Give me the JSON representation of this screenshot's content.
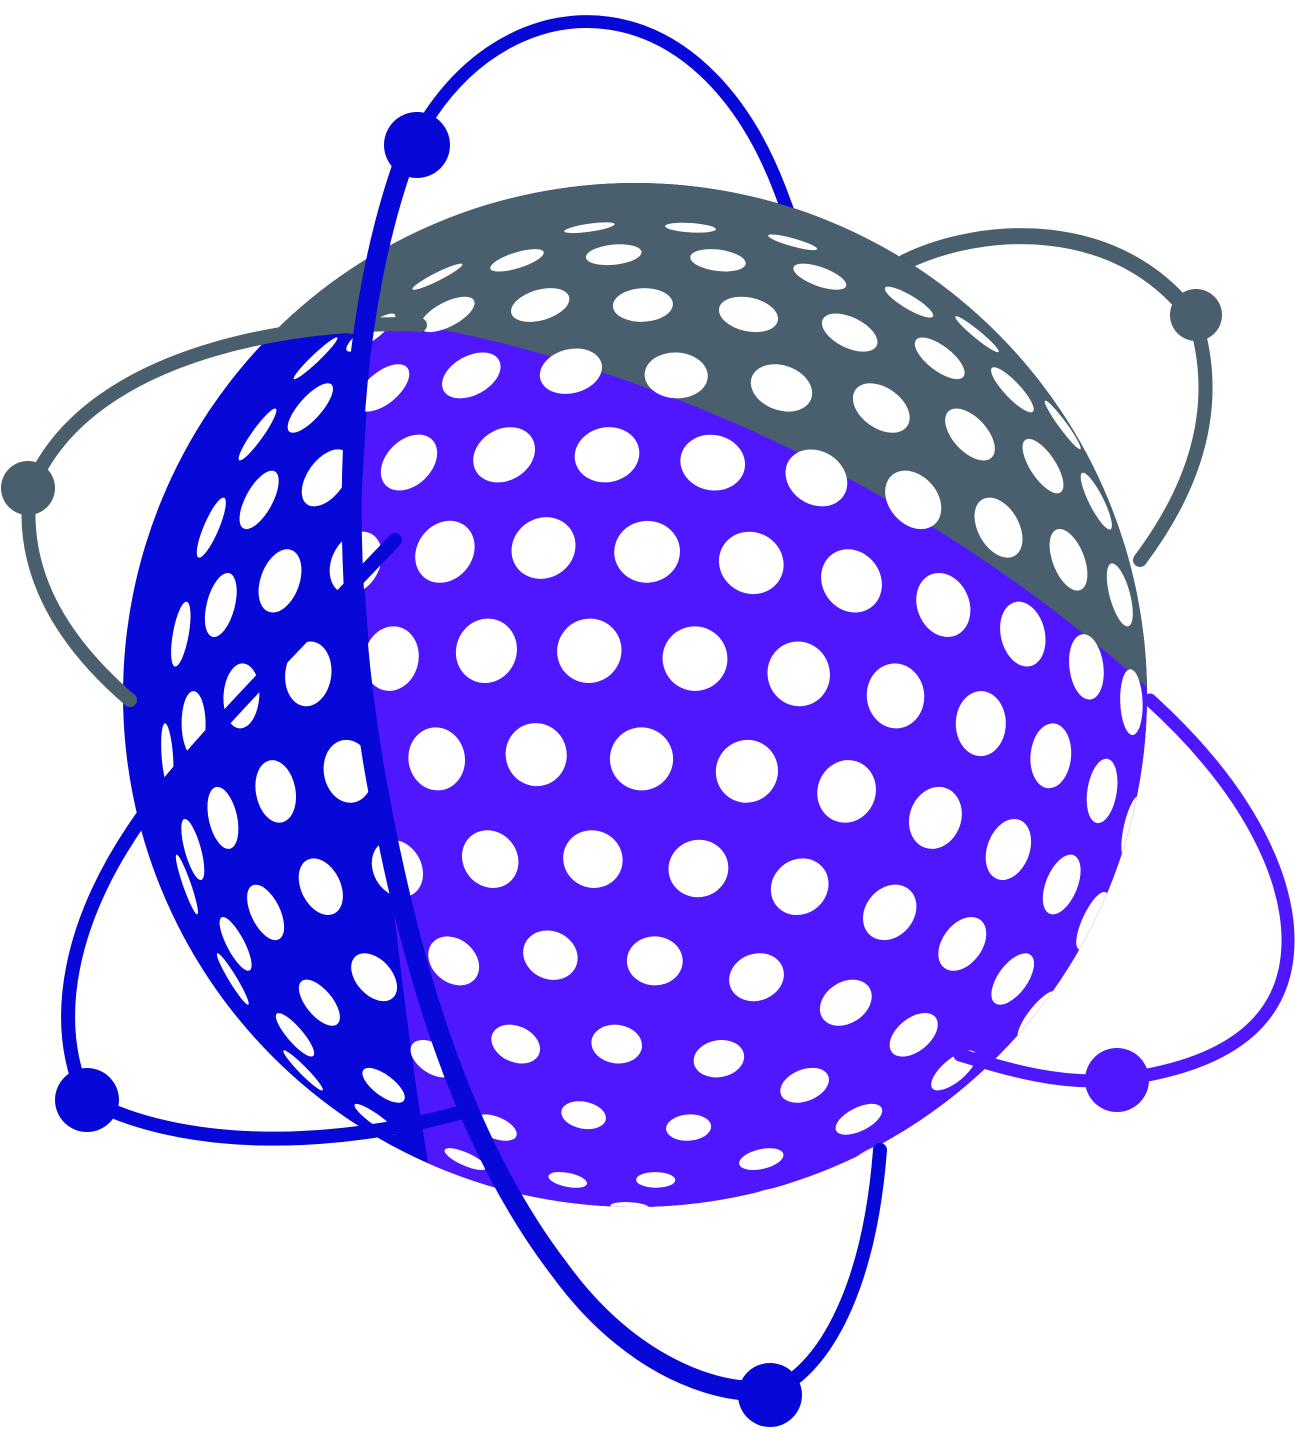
{
  "logo": {
    "subject": "perforated-sphere-atom-emblem",
    "colors": {
      "background": "#ffffff",
      "grey": "#4a5f6e",
      "blue": "#0707d8",
      "violet": "#4e17ff",
      "hole": "#ffffff"
    },
    "orbits": [
      {
        "name": "grey-orbit",
        "color": "grey"
      },
      {
        "name": "blue-orbit-vertical",
        "color": "blue"
      },
      {
        "name": "blue-orbit-lower",
        "color": "blue"
      },
      {
        "name": "violet-orbit",
        "color": "violet"
      }
    ],
    "electrons": [
      {
        "name": "electron-grey-left",
        "color": "grey"
      },
      {
        "name": "electron-grey-right",
        "color": "grey"
      },
      {
        "name": "electron-blue-top",
        "color": "blue"
      },
      {
        "name": "electron-blue-left",
        "color": "blue"
      },
      {
        "name": "electron-blue-bottom",
        "color": "blue"
      },
      {
        "name": "electron-violet-right",
        "color": "violet"
      }
    ]
  }
}
